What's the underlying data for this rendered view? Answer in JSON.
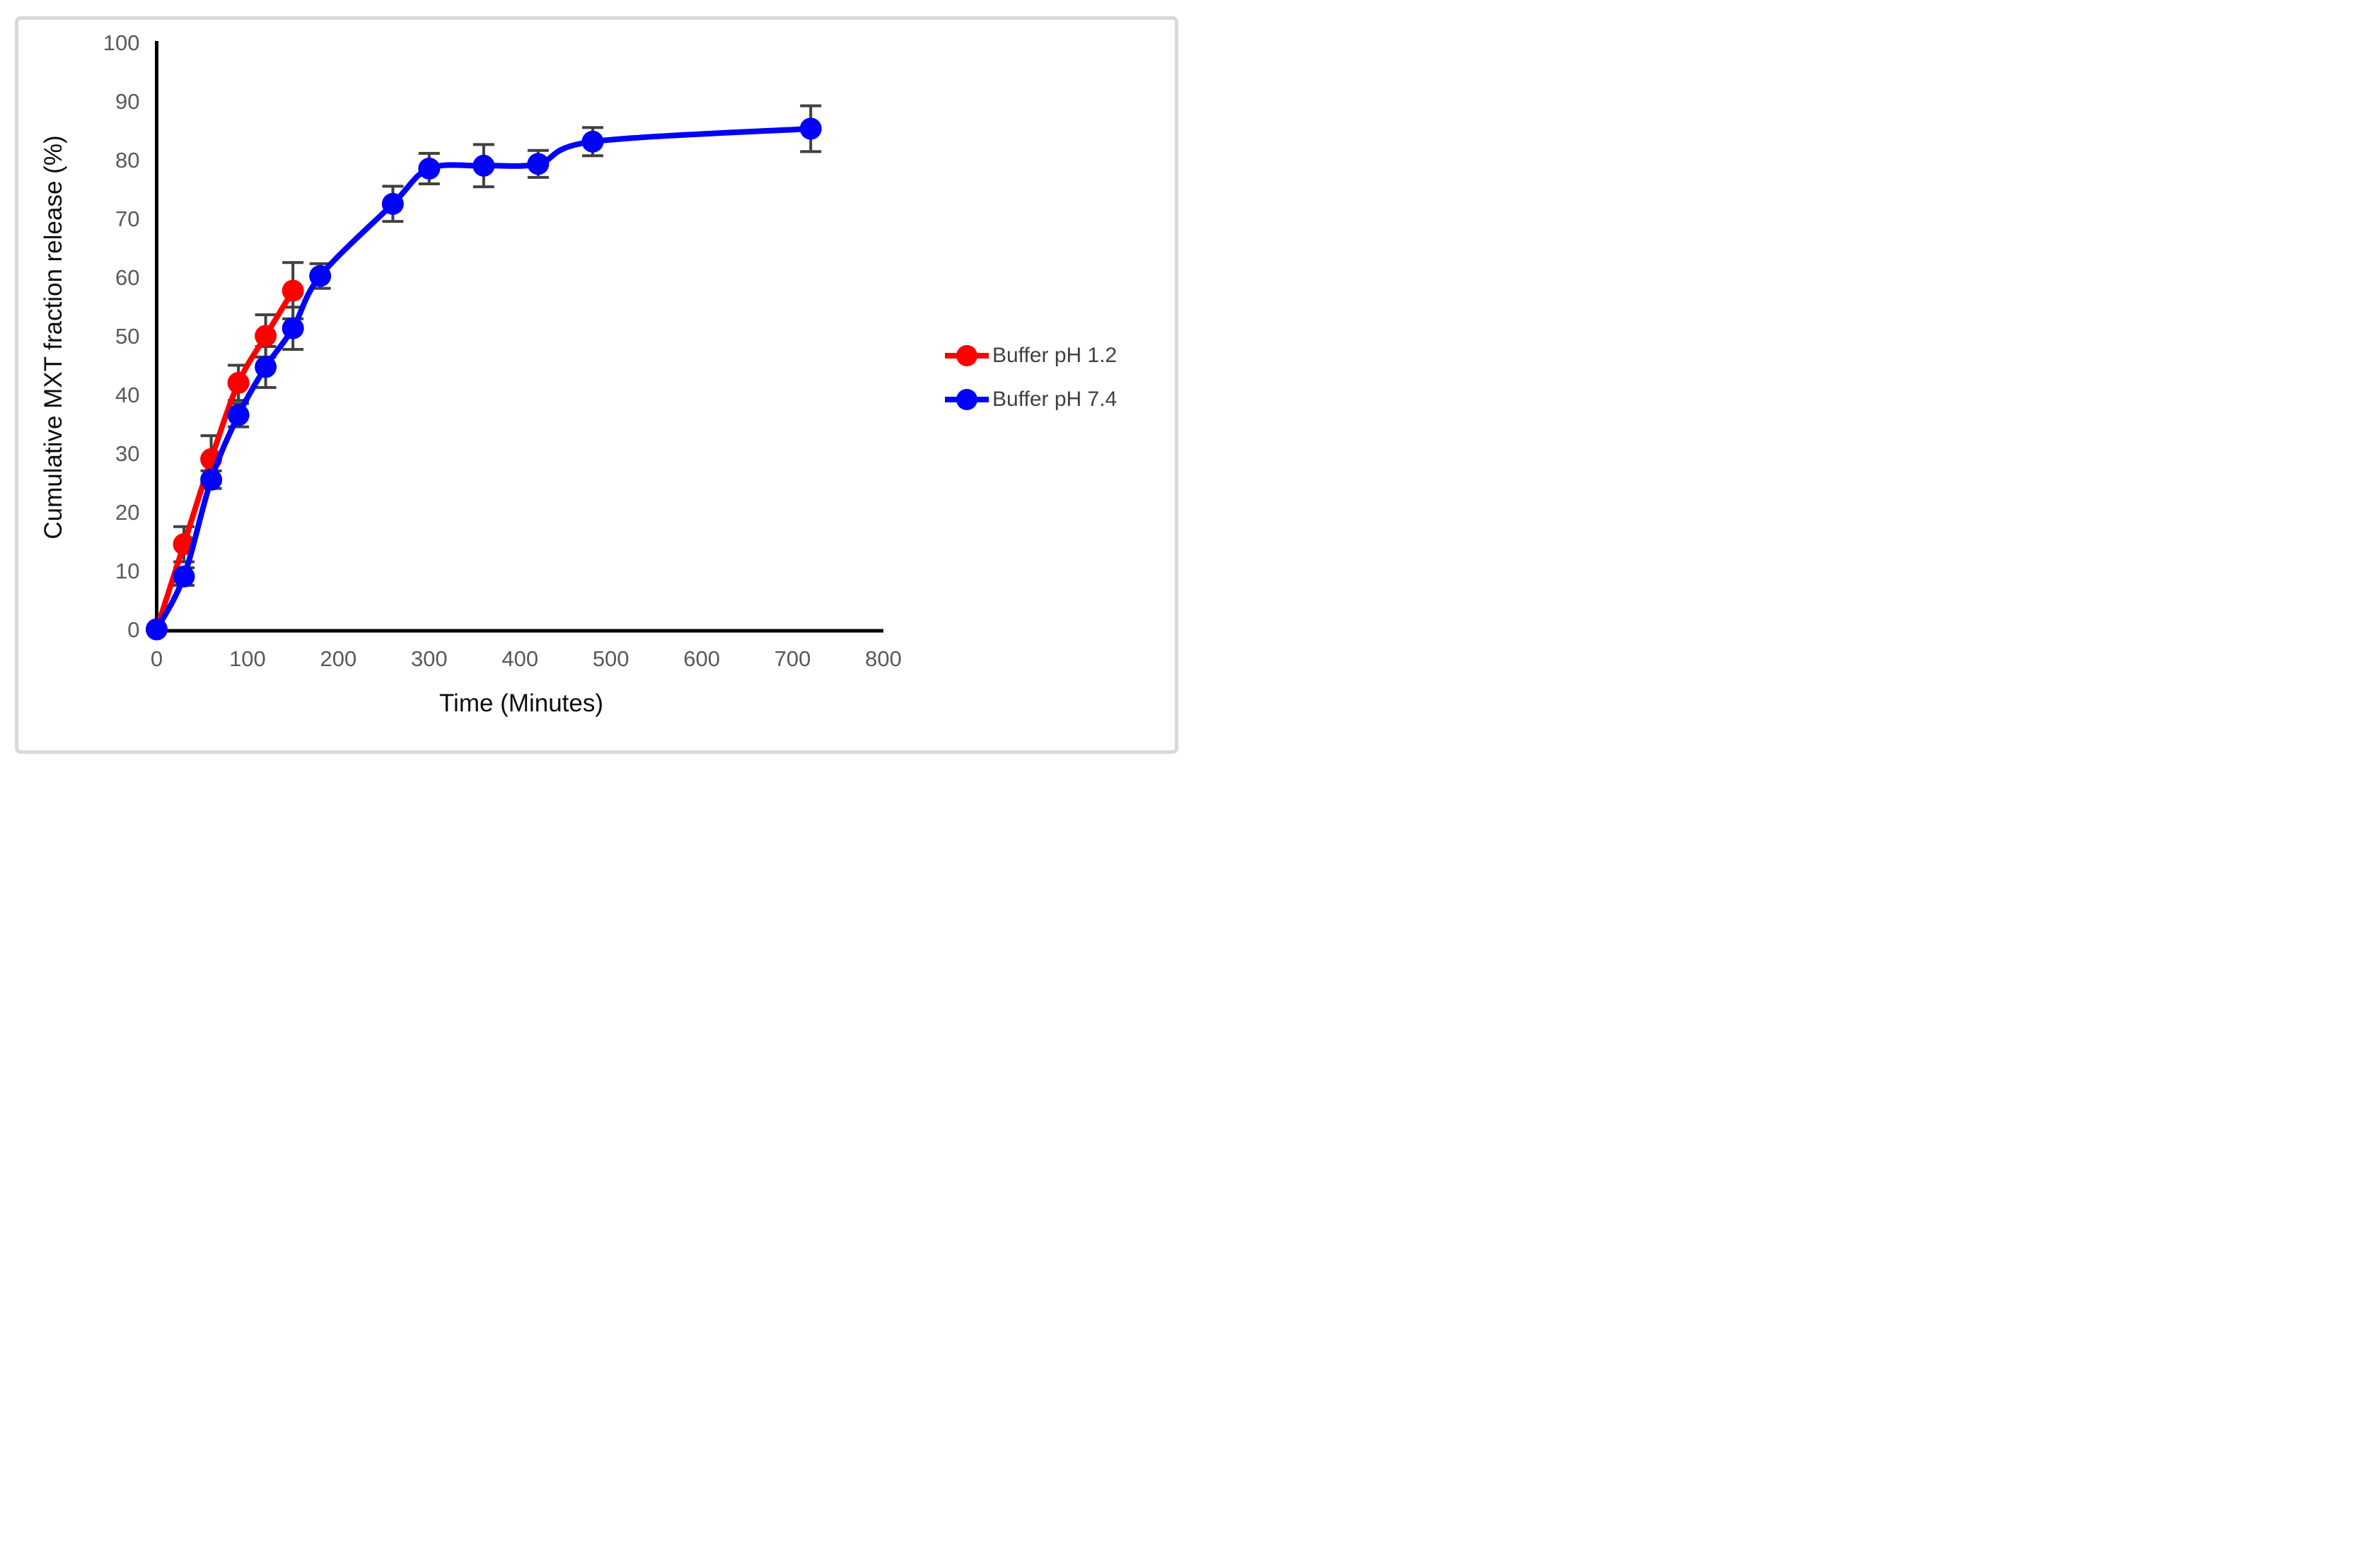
{
  "figure": {
    "background": "#ffffff",
    "border_color": "#d9d9d9"
  },
  "chart_data": {
    "type": "line",
    "title": "",
    "xlabel": "Time (Minutes)",
    "ylabel": "Cumulative MXT fraction release (%)",
    "xlim": [
      0,
      800
    ],
    "ylim": [
      0,
      100
    ],
    "x_ticks": [
      0,
      100,
      200,
      300,
      400,
      500,
      600,
      700,
      800
    ],
    "y_ticks": [
      0,
      10,
      20,
      30,
      40,
      50,
      60,
      70,
      80,
      90,
      100
    ],
    "grid": false,
    "error_bars": true,
    "legend_position": "right-middle",
    "axis_color": "#000000",
    "tick_label_color": "#595959",
    "error_bar_color": "#404040",
    "smoothed_lines": true,
    "series": [
      {
        "name": "Buffer pH 1.2",
        "color": "#ff0000",
        "x": [
          0,
          30,
          60,
          90,
          120,
          150
        ],
        "y": [
          0,
          14.5,
          29.0,
          42.0,
          50.0,
          57.7
        ],
        "yerr": [
          0,
          3.0,
          4.0,
          3.0,
          3.6,
          4.8
        ]
      },
      {
        "name": "Buffer pH 7.4",
        "color": "#0202fa",
        "x": [
          0,
          30,
          60,
          90,
          120,
          150,
          180,
          260,
          300,
          360,
          420,
          480,
          720
        ],
        "y": [
          0,
          9.0,
          25.5,
          36.5,
          44.7,
          51.3,
          60.2,
          72.5,
          78.5,
          79.0,
          79.3,
          83.1,
          85.3
        ],
        "yerr": [
          0,
          1.5,
          1.5,
          2.0,
          3.5,
          3.6,
          2.1,
          3.0,
          2.6,
          3.6,
          2.3,
          2.4,
          3.9
        ]
      }
    ]
  }
}
